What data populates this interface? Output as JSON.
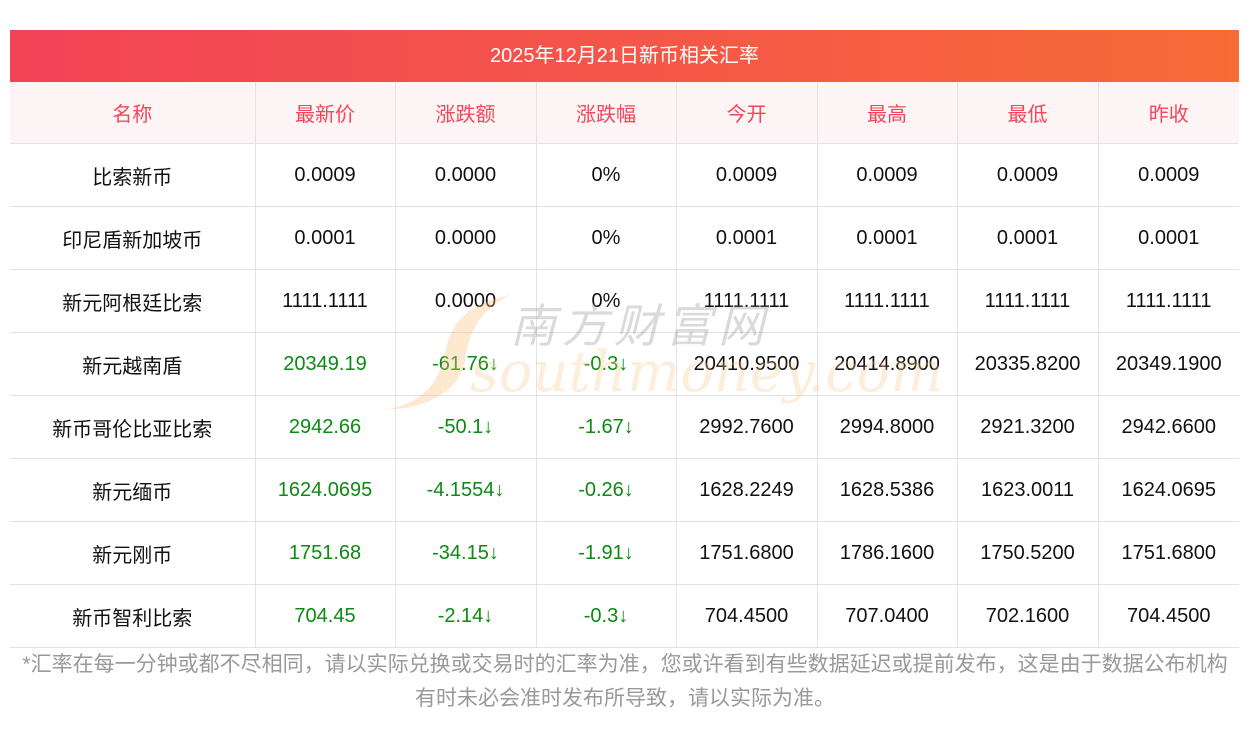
{
  "title": "2025年12月21日新币相关汇率",
  "headers": [
    "名称",
    "最新价",
    "涨跌额",
    "涨跌幅",
    "今开",
    "最高",
    "最低",
    "昨收"
  ],
  "rows": [
    {
      "cells": [
        "比索新币",
        "0.0009",
        "0.0000",
        "0%",
        "0.0009",
        "0.0009",
        "0.0009",
        "0.0009"
      ],
      "down": false
    },
    {
      "cells": [
        "印尼盾新加坡币",
        "0.0001",
        "0.0000",
        "0%",
        "0.0001",
        "0.0001",
        "0.0001",
        "0.0001"
      ],
      "down": false
    },
    {
      "cells": [
        "新元阿根廷比索",
        "1111.1111",
        "0.0000",
        "0%",
        "1111.1111",
        "1111.1111",
        "1111.1111",
        "1111.1111"
      ],
      "down": false
    },
    {
      "cells": [
        "新元越南盾",
        "20349.19",
        "-61.76↓",
        "-0.3↓",
        "20410.9500",
        "20414.8900",
        "20335.8200",
        "20349.1900"
      ],
      "down": true
    },
    {
      "cells": [
        "新币哥伦比亚比索",
        "2942.66",
        "-50.1↓",
        "-1.67↓",
        "2992.7600",
        "2994.8000",
        "2921.3200",
        "2942.6600"
      ],
      "down": true
    },
    {
      "cells": [
        "新元缅币",
        "1624.0695",
        "-4.1554↓",
        "-0.26↓",
        "1628.2249",
        "1628.5386",
        "1623.0011",
        "1624.0695"
      ],
      "down": true
    },
    {
      "cells": [
        "新元刚币",
        "1751.68",
        "-34.15↓",
        "-1.91↓",
        "1751.6800",
        "1786.1600",
        "1750.5200",
        "1751.6800"
      ],
      "down": true
    },
    {
      "cells": [
        "新币智利比索",
        "704.45",
        "-2.14↓",
        "-0.3↓",
        "704.4500",
        "707.0400",
        "702.1600",
        "704.4500"
      ],
      "down": true
    }
  ],
  "colors": {
    "down": "#0c8a14",
    "header_text": "#f2475a"
  },
  "watermark": {
    "cn": "南方财富网",
    "en": "southmoney.com"
  },
  "note": "*汇率在每一分钟或都不尽相同，请以实际兑换或交易时的汇率为准，您或许看到有些数据延迟或提前发布，这是由于数据公布机构有时未必会准时发布所导致，请以实际为准。"
}
